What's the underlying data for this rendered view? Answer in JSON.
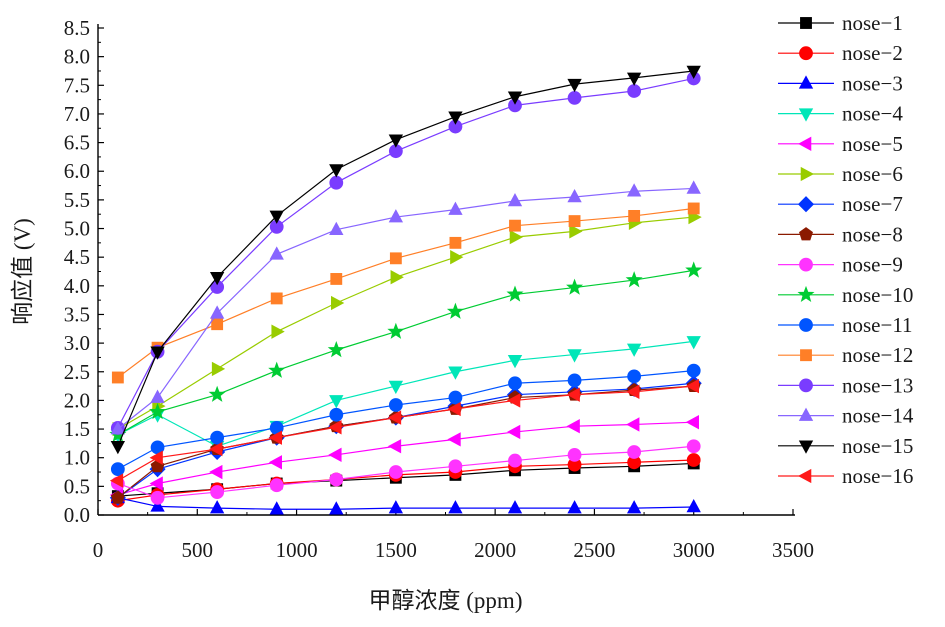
{
  "chart_data": {
    "type": "line",
    "title": "",
    "xlabel": "甲醇浓度 (ppm)",
    "ylabel": "响应值 (V)",
    "xlim": [
      0,
      3500
    ],
    "ylim": [
      0,
      8.5
    ],
    "xticks": [
      0,
      500,
      1000,
      1500,
      2000,
      2500,
      3000,
      3500
    ],
    "yticks": [
      0.0,
      0.5,
      1.0,
      1.5,
      2.0,
      2.5,
      3.0,
      3.5,
      4.0,
      4.5,
      5.0,
      5.5,
      6.0,
      6.5,
      7.0,
      7.5,
      8.0,
      8.5
    ],
    "grid": false,
    "legend_position": "right",
    "x": [
      100,
      300,
      600,
      900,
      1200,
      1500,
      1800,
      2100,
      2400,
      2700,
      3000
    ],
    "series": [
      {
        "name": "nose−1",
        "color": "#000000",
        "marker": "square",
        "values": [
          0.33,
          0.38,
          0.45,
          0.55,
          0.6,
          0.65,
          0.7,
          0.78,
          0.82,
          0.85,
          0.9
        ]
      },
      {
        "name": "nose−2",
        "color": "#ff0000",
        "marker": "circle",
        "values": [
          0.25,
          0.35,
          0.45,
          0.55,
          0.62,
          0.7,
          0.75,
          0.85,
          0.88,
          0.92,
          0.96
        ]
      },
      {
        "name": "nose−3",
        "color": "#0000ff",
        "marker": "triangle-up",
        "values": [
          0.3,
          0.15,
          0.12,
          0.1,
          0.1,
          0.12,
          0.12,
          0.12,
          0.12,
          0.12,
          0.14
        ]
      },
      {
        "name": "nose−4",
        "color": "#00e6b8",
        "marker": "triangle-down",
        "values": [
          1.4,
          1.75,
          1.2,
          1.55,
          2.0,
          2.25,
          2.5,
          2.7,
          2.8,
          2.9,
          3.03
        ]
      },
      {
        "name": "nose−5",
        "color": "#ff00ff",
        "marker": "triangle-left",
        "values": [
          0.35,
          0.55,
          0.75,
          0.92,
          1.05,
          1.2,
          1.32,
          1.45,
          1.55,
          1.58,
          1.62
        ]
      },
      {
        "name": "nose−6",
        "color": "#99cc00",
        "marker": "triangle-right",
        "values": [
          1.5,
          1.9,
          2.55,
          3.2,
          3.7,
          4.15,
          4.5,
          4.85,
          4.95,
          5.1,
          5.2
        ]
      },
      {
        "name": "nose−7",
        "color": "#0033ff",
        "marker": "diamond",
        "values": [
          0.3,
          0.8,
          1.1,
          1.35,
          1.55,
          1.7,
          1.9,
          2.1,
          2.15,
          2.2,
          2.3
        ]
      },
      {
        "name": "nose−8",
        "color": "#8b1a00",
        "marker": "pentagon",
        "values": [
          0.3,
          0.85,
          1.15,
          1.35,
          1.55,
          1.7,
          1.85,
          2.05,
          2.1,
          2.18,
          2.25
        ]
      },
      {
        "name": "nose−9",
        "color": "#ff33ff",
        "marker": "circle",
        "values": [
          0.55,
          0.3,
          0.4,
          0.52,
          0.62,
          0.75,
          0.85,
          0.95,
          1.05,
          1.1,
          1.2
        ]
      },
      {
        "name": "nose−10",
        "color": "#00cc33",
        "marker": "star",
        "values": [
          1.4,
          1.8,
          2.1,
          2.52,
          2.88,
          3.2,
          3.55,
          3.85,
          3.97,
          4.1,
          4.27
        ]
      },
      {
        "name": "nose−11",
        "color": "#0055ff",
        "marker": "circle",
        "values": [
          0.8,
          1.18,
          1.35,
          1.52,
          1.75,
          1.92,
          2.05,
          2.3,
          2.35,
          2.42,
          2.52
        ]
      },
      {
        "name": "nose−12",
        "color": "#ff7f27",
        "marker": "square",
        "values": [
          2.4,
          2.92,
          3.33,
          3.78,
          4.12,
          4.48,
          4.75,
          5.05,
          5.13,
          5.22,
          5.35
        ]
      },
      {
        "name": "nose−13",
        "color": "#7a3cff",
        "marker": "circle",
        "values": [
          1.52,
          2.85,
          3.98,
          5.03,
          5.8,
          6.35,
          6.78,
          7.15,
          7.28,
          7.4,
          7.62
        ]
      },
      {
        "name": "nose−14",
        "color": "#8866ff",
        "marker": "triangle-up",
        "values": [
          1.5,
          2.05,
          3.52,
          4.55,
          4.98,
          5.2,
          5.33,
          5.48,
          5.55,
          5.65,
          5.7
        ]
      },
      {
        "name": "nose−15",
        "color": "#000000",
        "marker": "triangle-down",
        "values": [
          1.2,
          2.85,
          4.15,
          5.22,
          6.03,
          6.55,
          6.95,
          7.3,
          7.52,
          7.63,
          7.75
        ]
      },
      {
        "name": "nose−16",
        "color": "#ff1a1a",
        "marker": "triangle-left",
        "values": [
          0.6,
          1.0,
          1.15,
          1.35,
          1.53,
          1.7,
          1.85,
          2.0,
          2.1,
          2.15,
          2.25
        ]
      }
    ]
  }
}
